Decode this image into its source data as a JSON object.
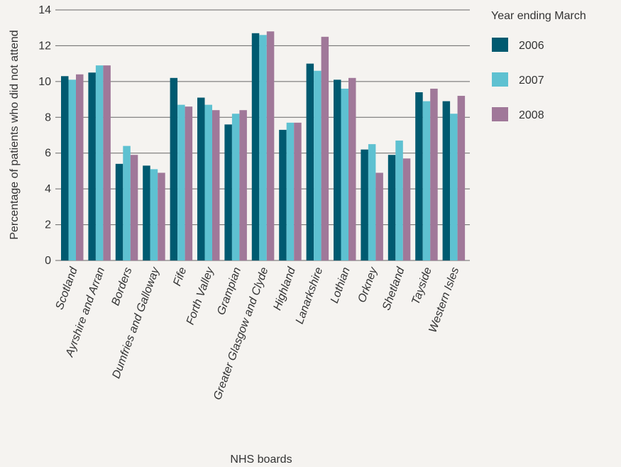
{
  "chart_data": {
    "type": "bar",
    "title": "",
    "xlabel": "NHS boards",
    "ylabel": "Percentage of patients who did not attend",
    "ylim": [
      0,
      14
    ],
    "yticks": [
      0,
      2,
      4,
      6,
      8,
      10,
      12,
      14
    ],
    "grid": true,
    "legend_title": "Year ending March",
    "legend_position": "right",
    "categories": [
      "Scotland",
      "Ayrshire and Arran",
      "Borders",
      "Dumfries and Galloway",
      "Fife",
      "Forth Valley",
      "Grampian",
      "Greater Glasgow and Clyde",
      "Highland",
      "Lanarkshire",
      "Lothian",
      "Orkney",
      "Shetland",
      "Tayside",
      "Western Isles"
    ],
    "series": [
      {
        "name": "2006",
        "color": "#005a70",
        "values": [
          10.3,
          10.5,
          5.4,
          5.3,
          10.2,
          9.1,
          7.6,
          12.7,
          7.3,
          11.0,
          10.1,
          6.2,
          5.9,
          9.4,
          8.9
        ]
      },
      {
        "name": "2007",
        "color": "#5ec1d1",
        "values": [
          10.1,
          10.9,
          6.4,
          5.1,
          8.7,
          8.7,
          8.2,
          12.6,
          7.7,
          10.6,
          9.6,
          6.5,
          6.7,
          8.9,
          8.2
        ]
      },
      {
        "name": "2008",
        "color": "#a07899",
        "values": [
          10.4,
          10.9,
          5.9,
          4.9,
          8.6,
          8.4,
          8.4,
          12.8,
          7.7,
          12.5,
          10.2,
          4.9,
          5.7,
          9.6,
          9.2
        ]
      }
    ]
  }
}
